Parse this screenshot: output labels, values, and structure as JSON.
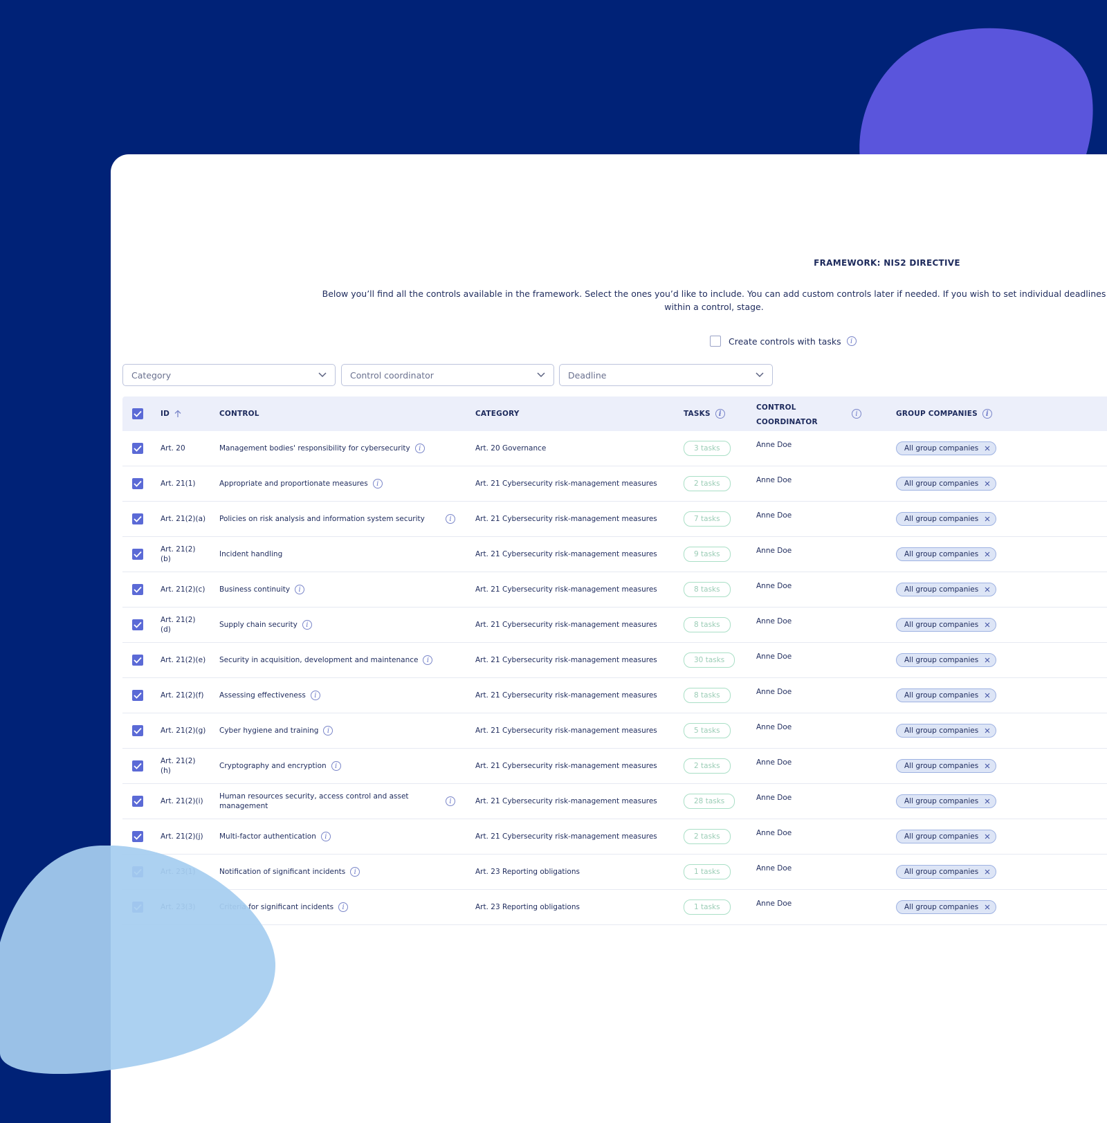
{
  "framework_title": "FRAMEWORK: NIS2 DIRECTIVE",
  "intro_text": "Below you’ll find all the controls available in the framework. Select the ones you’d like to include. You can add custom controls later if needed. If you wish to set individual deadlines within a control, stage.",
  "create_with_tasks": {
    "label": "Create controls with tasks",
    "checked": false
  },
  "filters": {
    "category": "Category",
    "coordinator": "Control coordinator",
    "deadline": "Deadline"
  },
  "table": {
    "headers": {
      "id": "ID",
      "control": "CONTROL",
      "category": "CATEGORY",
      "tasks": "TASKS",
      "coordinator_line1": "CONTROL",
      "coordinator_line2": "COORDINATOR",
      "companies": "GROUP COMPANIES"
    },
    "rows": [
      {
        "id_l1": "Art. 20",
        "id_l2": "",
        "control": "Management bodies' responsibility for cybersecurity",
        "info": true,
        "category": "Art. 20 Governance",
        "tasks": "3 tasks",
        "coordinator": "Anne Doe",
        "companies": "All group companies"
      },
      {
        "id_l1": "Art. 21(1)",
        "id_l2": "",
        "control": "Appropriate and proportionate measures",
        "info": true,
        "category": "Art. 21 Cybersecurity risk-management measures",
        "tasks": "2 tasks",
        "coordinator": "Anne Doe",
        "companies": "All group companies"
      },
      {
        "id_l1": "Art. 21(2)(a)",
        "id_l2": "",
        "control": "Policies on risk analysis and information system security",
        "info": true,
        "category": "Art. 21 Cybersecurity risk-management measures",
        "tasks": "7 tasks",
        "coordinator": "Anne Doe",
        "companies": "All group companies"
      },
      {
        "id_l1": "Art. 21(2)",
        "id_l2": "(b)",
        "control": "Incident handling",
        "info": false,
        "category": "Art. 21 Cybersecurity risk-management measures",
        "tasks": "9 tasks",
        "coordinator": "Anne Doe",
        "companies": "All group companies"
      },
      {
        "id_l1": "Art. 21(2)(c)",
        "id_l2": "",
        "control": "Business continuity",
        "info": true,
        "category": "Art. 21 Cybersecurity risk-management measures",
        "tasks": "8 tasks",
        "coordinator": "Anne Doe",
        "companies": "All group companies"
      },
      {
        "id_l1": "Art. 21(2)",
        "id_l2": "(d)",
        "control": "Supply chain security",
        "info": true,
        "category": "Art. 21 Cybersecurity risk-management measures",
        "tasks": "8 tasks",
        "coordinator": "Anne Doe",
        "companies": "All group companies"
      },
      {
        "id_l1": "Art. 21(2)(e)",
        "id_l2": "",
        "control": "Security in acquisition, development and maintenance",
        "info": true,
        "category": "Art. 21 Cybersecurity risk-management measures",
        "tasks": "30 tasks",
        "coordinator": "Anne Doe",
        "companies": "All group companies"
      },
      {
        "id_l1": "Art. 21(2)(f)",
        "id_l2": "",
        "control": "Assessing effectiveness",
        "info": true,
        "category": "Art. 21 Cybersecurity risk-management measures",
        "tasks": "8 tasks",
        "coordinator": "Anne Doe",
        "companies": "All group companies"
      },
      {
        "id_l1": "Art. 21(2)(g)",
        "id_l2": "",
        "control": "Cyber hygiene and training",
        "info": true,
        "category": "Art. 21 Cybersecurity risk-management measures",
        "tasks": "5 tasks",
        "coordinator": "Anne Doe",
        "companies": "All group companies"
      },
      {
        "id_l1": "Art. 21(2)",
        "id_l2": "(h)",
        "control": "Cryptography and encryption",
        "info": true,
        "category": "Art. 21 Cybersecurity risk-management measures",
        "tasks": "2 tasks",
        "coordinator": "Anne Doe",
        "companies": "All group companies"
      },
      {
        "id_l1": "Art. 21(2)(i)",
        "id_l2": "",
        "control": "Human resources security, access control and asset management",
        "info": true,
        "category": "Art. 21 Cybersecurity risk-management measures",
        "tasks": "28 tasks",
        "coordinator": "Anne Doe",
        "companies": "All group companies"
      },
      {
        "id_l1": "Art. 21(2)(j)",
        "id_l2": "",
        "control": "Multi-factor authentication",
        "info": true,
        "category": "Art. 21 Cybersecurity risk-management measures",
        "tasks": "2 tasks",
        "coordinator": "Anne Doe",
        "companies": "All group companies"
      },
      {
        "id_l1": "Art. 23(1)",
        "id_l2": "",
        "control": "Notification of significant incidents",
        "info": true,
        "category": "Art. 23 Reporting obligations",
        "tasks": "1 tasks",
        "coordinator": "Anne Doe",
        "companies": "All group companies"
      },
      {
        "id_l1": "Art. 23(3)",
        "id_l2": "",
        "control": "Criteria for significant incidents",
        "info": true,
        "category": "Art. 23 Reporting obligations",
        "tasks": "1 tasks",
        "coordinator": "Anne Doe",
        "companies": "All group companies"
      }
    ]
  },
  "colors": {
    "background": "#002277",
    "blob_top": "#5a55dc",
    "blob_bottom": "#a6cdf0",
    "checkbox": "#5b6ad6",
    "header_bg": "#eceffa"
  }
}
